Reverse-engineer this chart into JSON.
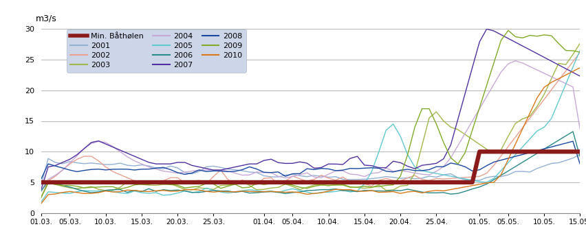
{
  "ylabel": "m3/s",
  "ylim": [
    0,
    30
  ],
  "yticks": [
    0,
    5,
    10,
    15,
    20,
    25,
    30
  ],
  "legend_bg": "#ccd6e8",
  "series_colors": {
    "Min. Batholen": "#8B1A1A",
    "2001": "#92afd4",
    "2002": "#e8a090",
    "2003": "#a0b84a",
    "2004": "#c8a8d8",
    "2005": "#60c8d0",
    "2006": "#2a8888",
    "2007": "#5030a0",
    "2008": "#1848a0",
    "2009": "#80aa28",
    "2010": "#d87818"
  },
  "x_tick_labels": [
    "01.03.",
    "05.03.",
    "10.03.",
    "15.03.",
    "20.03.",
    "25.03.",
    "01.04.",
    "05.04.",
    "10.04.",
    "15.04.",
    "20.04.",
    "25.04.",
    "01.05.",
    "05.05.",
    "10.05.",
    "15.05."
  ],
  "x_tick_pos": [
    0,
    4,
    9,
    14,
    19,
    24,
    31,
    35,
    40,
    45,
    50,
    55,
    61,
    65,
    70,
    75
  ]
}
